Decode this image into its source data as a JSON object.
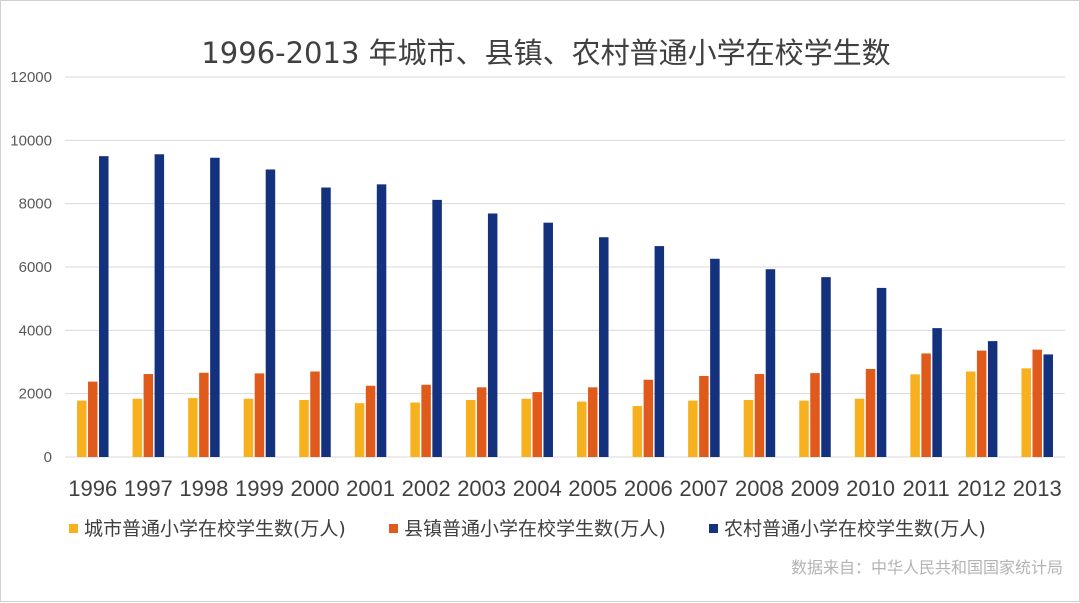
{
  "chart_data": {
    "type": "bar",
    "title": "1996-2013 年城市、县镇、农村普通小学在校学生数",
    "xlabel": "",
    "ylabel": "",
    "ylim": [
      0,
      12000
    ],
    "yticks": [
      0,
      2000,
      4000,
      6000,
      8000,
      10000,
      12000
    ],
    "grid": true,
    "legend_position": "bottom",
    "categories": [
      "1996",
      "1997",
      "1998",
      "1999",
      "2000",
      "2001",
      "2002",
      "2003",
      "2004",
      "2005",
      "2006",
      "2007",
      "2008",
      "2009",
      "2010",
      "2011",
      "2012",
      "2013"
    ],
    "series": [
      {
        "name": "城市普通小学在校学生数(万人)",
        "color": "#f7b11e",
        "values": [
          1780,
          1840,
          1860,
          1840,
          1800,
          1700,
          1720,
          1800,
          1840,
          1750,
          1610,
          1780,
          1800,
          1780,
          1840,
          2610,
          2700,
          2800
        ]
      },
      {
        "name": "县镇普通小学在校学生数(万人)",
        "color": "#e05a1b",
        "values": [
          2380,
          2620,
          2660,
          2640,
          2700,
          2250,
          2280,
          2200,
          2050,
          2200,
          2440,
          2560,
          2620,
          2650,
          2780,
          3270,
          3360,
          3390
        ]
      },
      {
        "name": "农村普通小学在校学生数(万人)",
        "color": "#14317d",
        "values": [
          9500,
          9560,
          9450,
          9080,
          8510,
          8610,
          8120,
          7690,
          7400,
          6940,
          6660,
          6260,
          5930,
          5680,
          5340,
          4070,
          3660,
          3240
        ]
      }
    ],
    "source_note": "数据来自：中华人民共和国国家统计局"
  }
}
